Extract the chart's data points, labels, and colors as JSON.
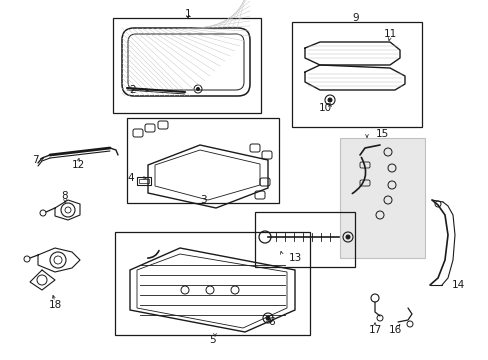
{
  "bg_color": "#ffffff",
  "lc": "#1a1a1a",
  "gray": "#c0c0c0",
  "light_gray": "#e8e8e8",
  "figsize": [
    4.89,
    3.6
  ],
  "dpi": 100
}
